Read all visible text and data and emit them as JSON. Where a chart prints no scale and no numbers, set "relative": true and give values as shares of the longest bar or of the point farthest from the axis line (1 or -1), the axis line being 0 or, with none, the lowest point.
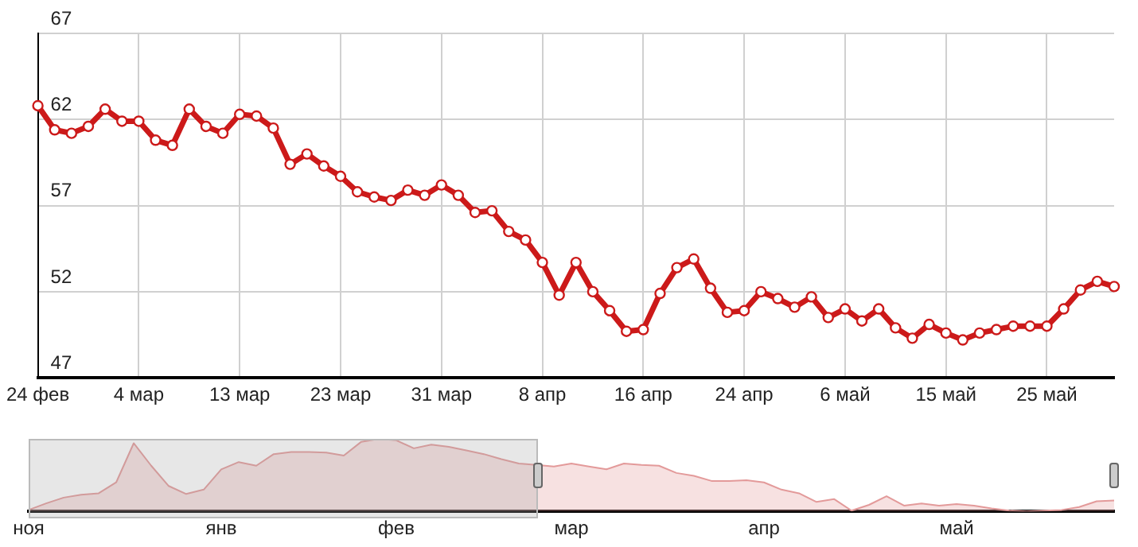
{
  "chart_data": [
    {
      "type": "line",
      "categories": [
        "24 фев",
        null,
        null,
        null,
        null,
        null,
        "4 мар",
        null,
        null,
        null,
        null,
        null,
        "13 мар",
        null,
        null,
        null,
        null,
        null,
        "23 мар",
        null,
        null,
        null,
        null,
        null,
        "31 мар",
        null,
        null,
        null,
        null,
        null,
        "8 апр",
        null,
        null,
        null,
        null,
        null,
        "16 апр",
        null,
        null,
        null,
        null,
        null,
        "24 апр",
        null,
        null,
        null,
        null,
        null,
        "6 май",
        null,
        null,
        null,
        null,
        null,
        "15 май",
        null,
        null,
        null,
        null,
        null,
        "25 май",
        null,
        null,
        null,
        null
      ],
      "values": [
        62.8,
        61.4,
        61.2,
        61.6,
        62.6,
        61.9,
        61.9,
        60.8,
        60.5,
        62.6,
        61.6,
        61.2,
        62.3,
        62.2,
        61.5,
        59.4,
        60.0,
        59.3,
        58.7,
        57.8,
        57.5,
        57.3,
        57.9,
        57.6,
        58.2,
        57.6,
        56.6,
        56.7,
        55.5,
        55.0,
        53.7,
        51.8,
        53.7,
        52.0,
        50.9,
        49.7,
        49.8,
        51.9,
        53.4,
        53.9,
        52.2,
        50.8,
        50.9,
        52.0,
        51.6,
        51.1,
        51.7,
        50.5,
        51.0,
        50.3,
        51.0,
        49.9,
        49.3,
        50.1,
        49.6,
        49.2,
        49.6,
        49.8,
        50.0,
        50.0,
        50.0,
        51.0,
        52.1,
        52.6,
        52.3
      ],
      "color": "#cc1a1a",
      "marker": "circle",
      "ylim": [
        47,
        67
      ],
      "yticks": [
        47,
        52,
        57,
        62,
        67
      ],
      "grid": true
    },
    {
      "type": "area",
      "relative": true,
      "categories": [
        "ноя",
        null,
        null,
        null,
        null,
        null,
        null,
        null,
        null,
        null,
        null,
        "янв",
        null,
        null,
        null,
        null,
        null,
        null,
        null,
        null,
        null,
        "фев",
        null,
        null,
        null,
        null,
        null,
        null,
        null,
        null,
        null,
        "мар",
        null,
        null,
        null,
        null,
        null,
        null,
        null,
        null,
        null,
        null,
        "апр",
        null,
        null,
        null,
        null,
        null,
        null,
        null,
        null,
        null,
        null,
        "май",
        null,
        null,
        null,
        null,
        null,
        null,
        null,
        null,
        null
      ],
      "values": [
        0.02,
        0.11,
        0.19,
        0.23,
        0.25,
        0.4,
        0.94,
        0.63,
        0.35,
        0.24,
        0.3,
        0.58,
        0.68,
        0.63,
        0.79,
        0.82,
        0.82,
        0.81,
        0.77,
        0.96,
        1.0,
        0.98,
        0.87,
        0.92,
        0.89,
        0.84,
        0.79,
        0.72,
        0.66,
        0.64,
        0.62,
        0.66,
        0.62,
        0.58,
        0.66,
        0.64,
        0.63,
        0.53,
        0.49,
        0.42,
        0.42,
        0.43,
        0.4,
        0.3,
        0.25,
        0.13,
        0.17,
        0.01,
        0.09,
        0.21,
        0.08,
        0.11,
        0.08,
        0.1,
        0.08,
        0.04,
        0.01,
        0,
        0.01,
        0.02,
        0.06,
        0.14,
        0.15
      ],
      "color": "#e39a9a"
    }
  ]
}
